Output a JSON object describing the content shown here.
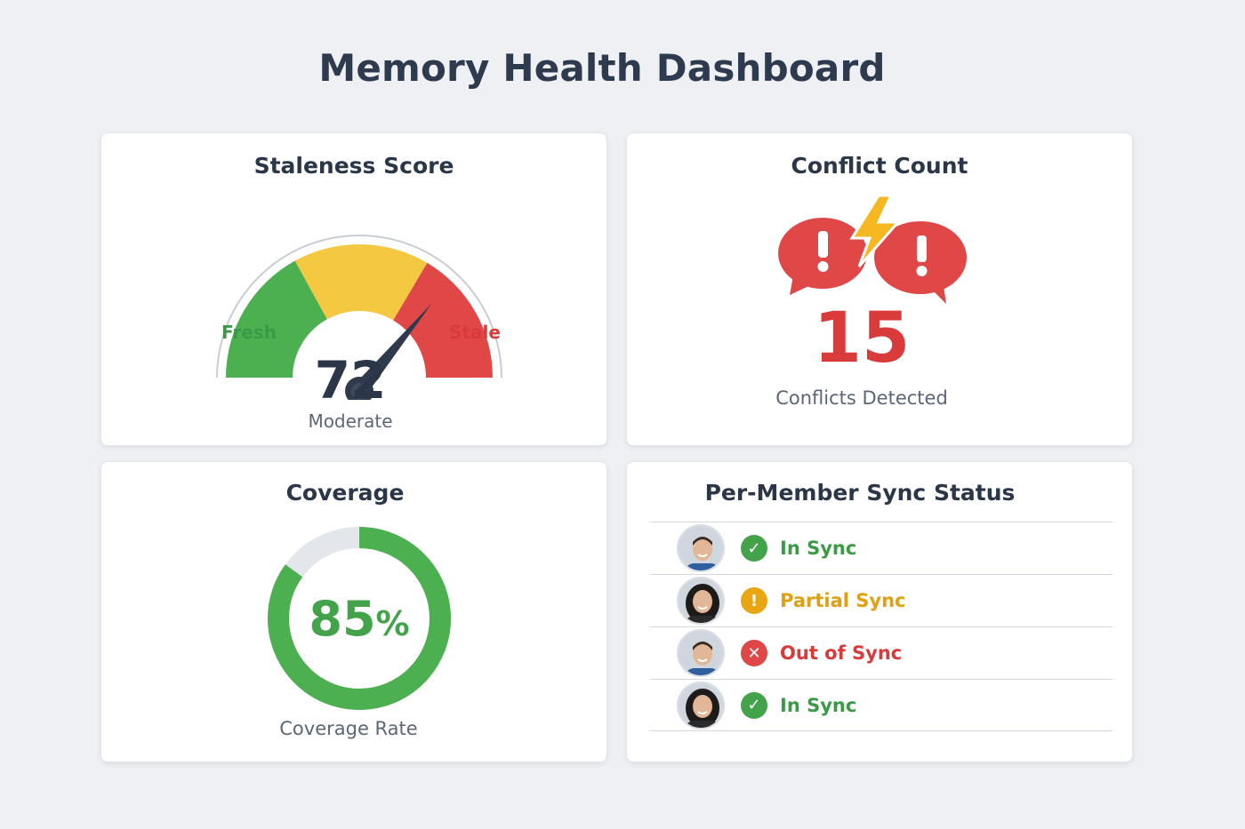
{
  "page": {
    "title": "Memory Health Dashboard"
  },
  "colors": {
    "background": "#eef0f4",
    "green": "#43a34b",
    "yellow": "#f5c842",
    "red": "#e04848",
    "dark_text": "#2b3648",
    "muted_text": "#5b6678",
    "orange_text": "#e0a010"
  },
  "staleness": {
    "title": "Staleness Score",
    "min_label": "Fresh",
    "max_label": "Stale",
    "score": "72",
    "score_fraction": 0.72,
    "status": "Moderate"
  },
  "conflicts": {
    "title": "Conflict Count",
    "icon": "conflict-bubbles-lightning-icon",
    "count": "15",
    "label": "Conflicts Detected"
  },
  "coverage": {
    "title": "Coverage",
    "value": "85",
    "unit": "%",
    "fraction": 0.85,
    "label": "Coverage Rate"
  },
  "sync": {
    "title": "Per-Member Sync Status",
    "members": [
      {
        "avatar": "male-avatar",
        "status": "In Sync",
        "status_type": "ok",
        "icon": "check-circle-icon"
      },
      {
        "avatar": "female-avatar",
        "status": "Partial Sync",
        "status_type": "warn",
        "icon": "exclamation-circle-icon"
      },
      {
        "avatar": "male-avatar",
        "status": "Out of Sync",
        "status_type": "error",
        "icon": "x-circle-icon"
      },
      {
        "avatar": "female-avatar",
        "status": "In Sync",
        "status_type": "ok",
        "icon": "check-circle-icon"
      }
    ]
  }
}
